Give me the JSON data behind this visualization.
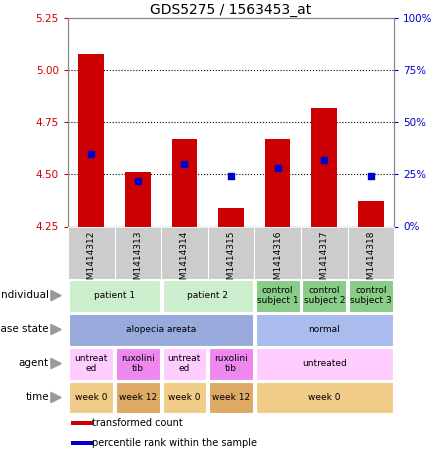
{
  "title": "GDS5275 / 1563453_at",
  "samples": [
    "GSM1414312",
    "GSM1414313",
    "GSM1414314",
    "GSM1414315",
    "GSM1414316",
    "GSM1414317",
    "GSM1414318"
  ],
  "transformed_count": [
    5.08,
    4.51,
    4.67,
    4.34,
    4.67,
    4.82,
    4.37
  ],
  "percentile_rank": [
    35,
    22,
    30,
    24,
    28,
    32,
    24
  ],
  "ylim_left": [
    4.25,
    5.25
  ],
  "yticks_left": [
    4.25,
    4.5,
    4.75,
    5.0,
    5.25
  ],
  "ylim_right": [
    0,
    100
  ],
  "yticks_right": [
    0,
    25,
    50,
    75,
    100
  ],
  "bar_color": "#cc0000",
  "dot_color": "#0000cc",
  "bar_bottom": 4.25,
  "dot_size": 25,
  "bar_width": 0.55,
  "metadata_rows": [
    {
      "label": "individual",
      "cells": [
        {
          "text": "patient 1",
          "span": 2,
          "color": "#cceecc"
        },
        {
          "text": "patient 2",
          "span": 2,
          "color": "#cceecc"
        },
        {
          "text": "control\nsubject 1",
          "span": 1,
          "color": "#88cc88"
        },
        {
          "text": "control\nsubject 2",
          "span": 1,
          "color": "#88cc88"
        },
        {
          "text": "control\nsubject 3",
          "span": 1,
          "color": "#88cc88"
        }
      ]
    },
    {
      "label": "disease state",
      "cells": [
        {
          "text": "alopecia areata",
          "span": 4,
          "color": "#99aadd"
        },
        {
          "text": "normal",
          "span": 3,
          "color": "#aabbee"
        }
      ]
    },
    {
      "label": "agent",
      "cells": [
        {
          "text": "untreat\ned",
          "span": 1,
          "color": "#ffccff"
        },
        {
          "text": "ruxolini\ntib",
          "span": 1,
          "color": "#ee88ee"
        },
        {
          "text": "untreat\ned",
          "span": 1,
          "color": "#ffccff"
        },
        {
          "text": "ruxolini\ntib",
          "span": 1,
          "color": "#ee88ee"
        },
        {
          "text": "untreated",
          "span": 3,
          "color": "#ffccff"
        }
      ]
    },
    {
      "label": "time",
      "cells": [
        {
          "text": "week 0",
          "span": 1,
          "color": "#f0cc88"
        },
        {
          "text": "week 12",
          "span": 1,
          "color": "#ddaa66"
        },
        {
          "text": "week 0",
          "span": 1,
          "color": "#f0cc88"
        },
        {
          "text": "week 12",
          "span": 1,
          "color": "#ddaa66"
        },
        {
          "text": "week 0",
          "span": 3,
          "color": "#f0cc88"
        }
      ]
    }
  ],
  "legend_items": [
    {
      "color": "#cc0000",
      "label": "transformed count"
    },
    {
      "color": "#0000cc",
      "label": "percentile rank within the sample"
    }
  ],
  "grid_color": "black",
  "title_fontsize": 10,
  "axis_label_color_left": "#cc0000",
  "axis_label_color_right": "#0000cc",
  "sample_label_bg": "#cccccc",
  "fig_width": 4.38,
  "fig_height": 4.53
}
